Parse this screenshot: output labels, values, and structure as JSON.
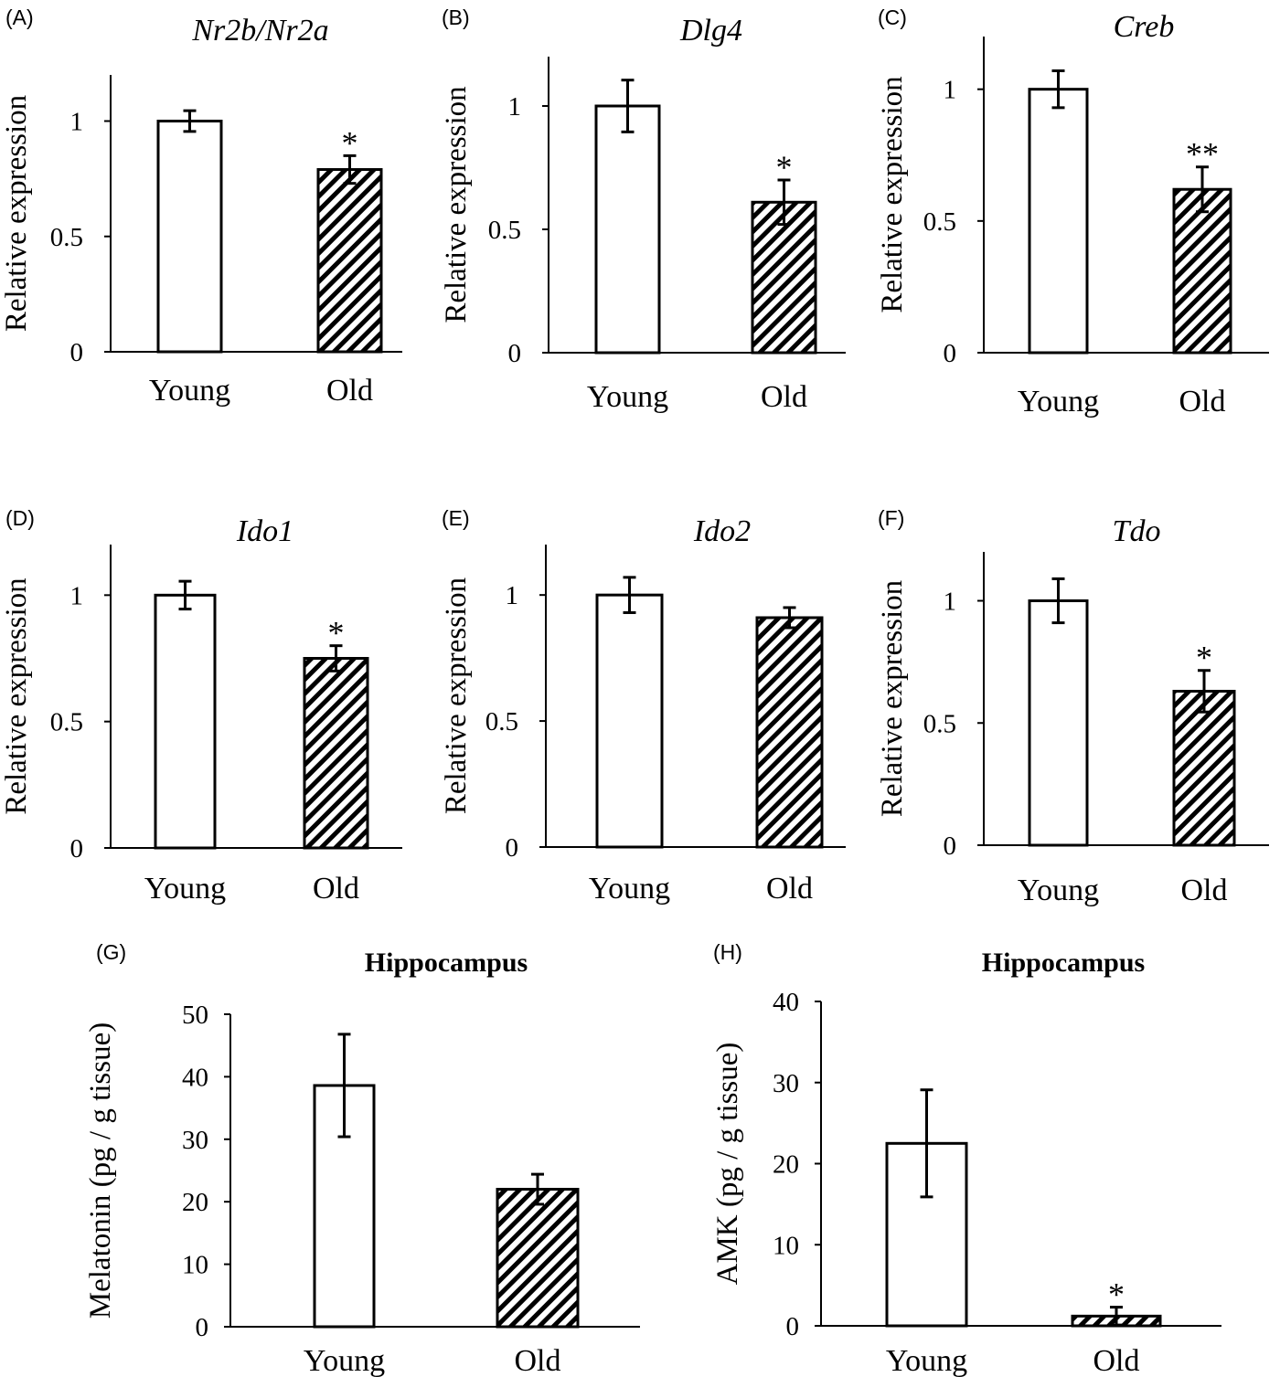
{
  "colors": {
    "ink": "#000000",
    "bar_fill": "#ffffff"
  },
  "chart_data": [
    {
      "panel": "(A)",
      "type": "bar",
      "title": "Nr2b/Nr2a",
      "title_style": "italic",
      "ylabel": "Relative expression",
      "categories": [
        "Young",
        "Old"
      ],
      "values": [
        1.0,
        0.79
      ],
      "errors": [
        0.045,
        0.06
      ],
      "patterns": [
        "solid",
        "hatched"
      ],
      "significance": [
        "",
        "*"
      ],
      "ylim": [
        0,
        1.2
      ],
      "yticks": [
        0,
        0.5,
        1
      ],
      "ytick_labels": [
        "0",
        "0.5",
        "1"
      ],
      "grid": false
    },
    {
      "panel": "(B)",
      "type": "bar",
      "title": "Dlg4",
      "title_style": "italic",
      "ylabel": "Relative expression",
      "categories": [
        "Young",
        "Old"
      ],
      "values": [
        1.0,
        0.61
      ],
      "errors": [
        0.105,
        0.09
      ],
      "patterns": [
        "solid",
        "hatched"
      ],
      "significance": [
        "",
        "*"
      ],
      "ylim": [
        0,
        1.2
      ],
      "yticks": [
        0,
        0.5,
        1
      ],
      "ytick_labels": [
        "0",
        "0.5",
        "1"
      ],
      "grid": false
    },
    {
      "panel": "(C)",
      "type": "bar",
      "title": "Creb",
      "title_style": "italic",
      "ylabel": "Relative expression",
      "categories": [
        "Young",
        "Old"
      ],
      "values": [
        1.0,
        0.62
      ],
      "errors": [
        0.07,
        0.085
      ],
      "patterns": [
        "solid",
        "hatched"
      ],
      "significance": [
        "",
        "**"
      ],
      "ylim": [
        0,
        1.2
      ],
      "yticks": [
        0,
        0.5,
        1
      ],
      "ytick_labels": [
        "0",
        "0.5",
        "1"
      ],
      "grid": false
    },
    {
      "panel": "(D)",
      "type": "bar",
      "title": "Ido1",
      "title_style": "italic",
      "ylabel": "Relative expression",
      "categories": [
        "Young",
        "Old"
      ],
      "values": [
        1.0,
        0.75
      ],
      "errors": [
        0.055,
        0.05
      ],
      "patterns": [
        "solid",
        "hatched"
      ],
      "significance": [
        "",
        "*"
      ],
      "ylim": [
        0,
        1.2
      ],
      "yticks": [
        0,
        0.5,
        1
      ],
      "ytick_labels": [
        "0",
        "0.5",
        "1"
      ],
      "grid": false
    },
    {
      "panel": "(E)",
      "type": "bar",
      "title": "Ido2",
      "title_style": "italic",
      "ylabel": "Relative expression",
      "categories": [
        "Young",
        "Old"
      ],
      "values": [
        1.0,
        0.91
      ],
      "errors": [
        0.07,
        0.04
      ],
      "patterns": [
        "solid",
        "hatched"
      ],
      "significance": [
        "",
        ""
      ],
      "ylim": [
        0,
        1.2
      ],
      "yticks": [
        0,
        0.5,
        1
      ],
      "ytick_labels": [
        "0",
        "0.5",
        "1"
      ],
      "grid": false
    },
    {
      "panel": "(F)",
      "type": "bar",
      "title": "Tdo",
      "title_style": "italic",
      "ylabel": "Relative expression",
      "categories": [
        "Young",
        "Old"
      ],
      "values": [
        1.0,
        0.63
      ],
      "errors": [
        0.09,
        0.085
      ],
      "patterns": [
        "solid",
        "hatched"
      ],
      "significance": [
        "",
        "*"
      ],
      "ylim": [
        0,
        1.2
      ],
      "yticks": [
        0,
        0.5,
        1
      ],
      "ytick_labels": [
        "0",
        "0.5",
        "1"
      ],
      "grid": false
    },
    {
      "panel": "(G)",
      "type": "bar",
      "title": "Hippocampus",
      "title_style": "bold",
      "ylabel": "Melatonin (pg / g tissue)",
      "categories": [
        "Young",
        "Old"
      ],
      "values": [
        38.6,
        22.0
      ],
      "errors": [
        8.2,
        2.4
      ],
      "patterns": [
        "solid",
        "hatched"
      ],
      "significance": [
        "",
        ""
      ],
      "ylim": [
        0,
        50
      ],
      "yticks": [
        0,
        10,
        20,
        30,
        40,
        50
      ],
      "ytick_labels": [
        "0",
        "10",
        "20",
        "30",
        "40",
        "50"
      ],
      "grid": false
    },
    {
      "panel": "(H)",
      "type": "bar",
      "title": "Hippocampus",
      "title_style": "bold",
      "ylabel": "AMK (pg / g tissue)",
      "categories": [
        "Young",
        "Old"
      ],
      "values": [
        22.5,
        1.2
      ],
      "errors": [
        6.6,
        1.1
      ],
      "patterns": [
        "solid",
        "hatched"
      ],
      "significance": [
        "",
        "*"
      ],
      "ylim": [
        0,
        40
      ],
      "yticks": [
        0,
        10,
        20,
        30,
        40
      ],
      "ytick_labels": [
        "0",
        "10",
        "20",
        "30",
        "40"
      ],
      "grid": false
    }
  ]
}
